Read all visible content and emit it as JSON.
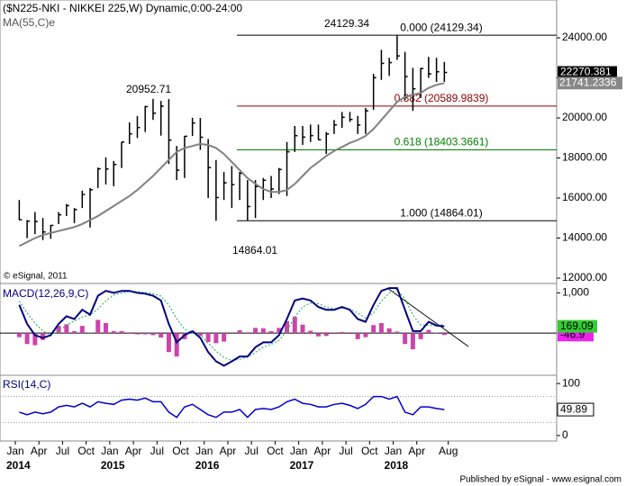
{
  "chart_data": {
    "type": "ohlc",
    "title": "($N225-NKI - NIKKEI 225,W) Dynamic,0:00-24:00",
    "ma_label": "MA(55,C)e",
    "copyright": "© eSignal, 2011",
    "footer": "Published by eSignal - www.esignal.com",
    "annotations": [
      "24129.34",
      "20952.71",
      "14864.01"
    ],
    "x": [
      "2014-01",
      "2014-02",
      "2014-03",
      "2014-04",
      "2014-05",
      "2014-06",
      "2014-07",
      "2014-08",
      "2014-09",
      "2014-10",
      "2014-11",
      "2014-12",
      "2015-01",
      "2015-02",
      "2015-03",
      "2015-04",
      "2015-05",
      "2015-06",
      "2015-07",
      "2015-08",
      "2015-09",
      "2015-10",
      "2015-11",
      "2015-12",
      "2016-01",
      "2016-02",
      "2016-03",
      "2016-04",
      "2016-05",
      "2016-06",
      "2016-07",
      "2016-08",
      "2016-09",
      "2016-10",
      "2016-11",
      "2016-12",
      "2017-01",
      "2017-02",
      "2017-03",
      "2017-04",
      "2017-05",
      "2017-06",
      "2017-07",
      "2017-08",
      "2017-09",
      "2017-10",
      "2017-11",
      "2017-12",
      "2018-01",
      "2018-02",
      "2018-03",
      "2018-04",
      "2018-05",
      "2018-06",
      "2018-07"
    ],
    "high": [
      15900,
      14900,
      15300,
      15000,
      14650,
      15300,
      15700,
      15500,
      16370,
      16500,
      17520,
      18030,
      17850,
      18800,
      19780,
      20100,
      20600,
      20952.71,
      20850,
      20940,
      18600,
      19100,
      20010,
      20000,
      18950,
      17900,
      17300,
      17600,
      17300,
      16900,
      16900,
      17000,
      17100,
      17500,
      18800,
      19600,
      19600,
      19670,
      19670,
      19300,
      19900,
      20300,
      20300,
      20100,
      20500,
      22200,
      23400,
      23000,
      24129.34,
      23300,
      22500,
      22500,
      23050,
      23000,
      22800
    ],
    "low": [
      14900,
      13995,
      14200,
      13900,
      13964,
      14700,
      15100,
      14750,
      15500,
      14529,
      16500,
      16672,
      16590,
      17500,
      18700,
      19000,
      19300,
      19900,
      19115,
      17700,
      16900,
      17000,
      19100,
      18400,
      16000,
      14865,
      15900,
      15500,
      15900,
      14864.01,
      15000,
      15900,
      16000,
      16200,
      16100,
      18300,
      18650,
      18800,
      18900,
      18200,
      19200,
      19500,
      19800,
      19200,
      19200,
      20400,
      21900,
      22100,
      22900,
      20900,
      20347,
      21000,
      22000,
      21800,
      21800
    ],
    "close": [
      14914,
      14841,
      14827,
      14304,
      14632,
      15162,
      15620,
      15424,
      16173,
      16413,
      17459,
      17450,
      17674,
      18797,
      19206,
      19520,
      20563,
      20235,
      20585,
      18890,
      17388,
      19083,
      19747,
      19033,
      17518,
      16026,
      16758,
      16666,
      17234,
      15575,
      16569,
      16887,
      16449,
      17425,
      18308,
      19114,
      19041,
      19118,
      18909,
      19196,
      19650,
      20033,
      19925,
      19646,
      20356,
      22011,
      22724,
      22764,
      23098,
      22068,
      21454,
      22467,
      22202,
      22304,
      22270.381
    ],
    "ma": [
      13600,
      13800,
      14000,
      14150,
      14250,
      14350,
      14450,
      14550,
      14700,
      14900,
      15100,
      15350,
      15600,
      15850,
      16100,
      16400,
      16750,
      17100,
      17500,
      17900,
      18300,
      18500,
      18600,
      18700,
      18650,
      18500,
      18200,
      17800,
      17400,
      17000,
      16700,
      16450,
      16300,
      16300,
      16400,
      16700,
      17100,
      17500,
      17800,
      18100,
      18350,
      18550,
      18750,
      18900,
      19100,
      19450,
      19900,
      20350,
      20800,
      21050,
      21150,
      21250,
      21500,
      21650,
      21741.2336
    ],
    "bar_color": "#000000",
    "ma_color": "#808080",
    "ylim": [
      11730,
      25890
    ],
    "yticks": [
      {
        "value": 24000,
        "label": "24000.00"
      },
      {
        "value": 22000,
        "label": "22000.00"
      },
      {
        "value": 20000,
        "label": "20000.00"
      },
      {
        "value": 18000,
        "label": "18000.00"
      },
      {
        "value": 16000,
        "label": "16000.00"
      },
      {
        "value": 14000,
        "label": "14000.00"
      },
      {
        "value": 12000,
        "label": "12000.00"
      }
    ],
    "fib": [
      {
        "value": 24129.34,
        "label": "0.000 (24129.34)",
        "color": "#000000"
      },
      {
        "value": 20589.9839,
        "label": "0.382 (20589.9839)",
        "color": "#8b0000"
      },
      {
        "value": 18403.3661,
        "label": "0.618 (18403.3661)",
        "color": "#008000"
      },
      {
        "value": 14864.01,
        "label": "1.000 (14864.01)",
        "color": "#000000"
      }
    ],
    "xticks": [
      {
        "value": "2014-01",
        "label": "Jan"
      },
      {
        "value": "2014-04",
        "label": "Apr"
      },
      {
        "value": "2014-07",
        "label": "Jul"
      },
      {
        "value": "2014-10",
        "label": "Oct"
      },
      {
        "value": "2015-01",
        "label": "Jan"
      },
      {
        "value": "2015-04",
        "label": "Apr"
      },
      {
        "value": "2015-07",
        "label": "Jul"
      },
      {
        "value": "2015-10",
        "label": "Oct"
      },
      {
        "value": "2016-01",
        "label": "Jan"
      },
      {
        "value": "2016-04",
        "label": "Apr"
      },
      {
        "value": "2016-07",
        "label": "Jul"
      },
      {
        "value": "2016-10",
        "label": "Oct"
      },
      {
        "value": "2017-01",
        "label": "Jan"
      },
      {
        "value": "2017-04",
        "label": "Apr"
      },
      {
        "value": "2017-07",
        "label": "Jul"
      },
      {
        "value": "2017-10",
        "label": "Oct"
      },
      {
        "value": "2018-01",
        "label": "Jan"
      },
      {
        "value": "2018-04",
        "label": "Apr"
      },
      {
        "value": "2018-08",
        "label": "Aug"
      }
    ],
    "year_labels": [
      {
        "value": "2014-01",
        "label": "2014"
      },
      {
        "value": "2015-01",
        "label": "2015"
      },
      {
        "value": "2016-01",
        "label": "2016"
      },
      {
        "value": "2017-01",
        "label": "2017"
      },
      {
        "value": "2018-01",
        "label": "2018"
      }
    ],
    "macd": {
      "title": "MACD(12,26,9,C)",
      "ylim": [
        -1047,
        1233
      ],
      "yticks": [
        {
          "value": 1000,
          "label": "1,000"
        }
      ],
      "zero": 0,
      "macd": [
        700,
        230,
        -50,
        -120,
        -50,
        230,
        420,
        350,
        580,
        460,
        930,
        1050,
        1000,
        1050,
        1050,
        1000,
        980,
        930,
        810,
        230,
        -230,
        -50,
        50,
        -120,
        -470,
        -700,
        -810,
        -700,
        -580,
        -580,
        -350,
        -230,
        -230,
        -50,
        350,
        810,
        860,
        810,
        650,
        580,
        580,
        650,
        580,
        350,
        280,
        700,
        1050,
        1120,
        1120,
        580,
        50,
        50,
        280,
        190,
        169.09
      ],
      "signal": [
        800,
        500,
        250,
        50,
        -50,
        50,
        200,
        300,
        400,
        450,
        600,
        800,
        950,
        1000,
        1030,
        1030,
        1010,
        980,
        920,
        700,
        350,
        100,
        0,
        -50,
        -250,
        -450,
        -600,
        -680,
        -650,
        -600,
        -480,
        -350,
        -280,
        -180,
        50,
        400,
        650,
        750,
        730,
        650,
        600,
        620,
        600,
        500,
        380,
        500,
        800,
        1000,
        1080,
        850,
        450,
        200,
        200,
        180,
        215.99
      ],
      "histogram": [
        -100,
        -270,
        -300,
        -170,
        0,
        180,
        220,
        50,
        180,
        10,
        330,
        250,
        50,
        50,
        20,
        -30,
        -30,
        -50,
        -110,
        -470,
        -580,
        -150,
        50,
        -70,
        -220,
        -250,
        -210,
        -20,
        70,
        20,
        130,
        120,
        50,
        130,
        300,
        410,
        210,
        60,
        -80,
        -70,
        -20,
        30,
        -20,
        -150,
        -100,
        200,
        250,
        120,
        40,
        -270,
        -400,
        -150,
        80,
        10,
        -46.9
      ],
      "macd_color": "#000080",
      "signal_color": "#3cb371",
      "hist_color": "#cc44aa"
    },
    "rsi": {
      "title": "RSI(14,C)",
      "ylim": [
        -10.5,
        115.8
      ],
      "yticks": [
        100,
        0
      ],
      "levels": [
        75,
        25
      ],
      "values": [
        45,
        40,
        45,
        42,
        45,
        55,
        58,
        55,
        62,
        55,
        65,
        62,
        60,
        68,
        70,
        68,
        72,
        65,
        65,
        45,
        35,
        55,
        60,
        50,
        40,
        35,
        45,
        45,
        50,
        35,
        50,
        52,
        50,
        55,
        65,
        70,
        62,
        60,
        55,
        55,
        60,
        62,
        58,
        52,
        60,
        75,
        75,
        70,
        75,
        45,
        40,
        55,
        55,
        52,
        49.89
      ],
      "color": "#0000cc"
    }
  }
}
